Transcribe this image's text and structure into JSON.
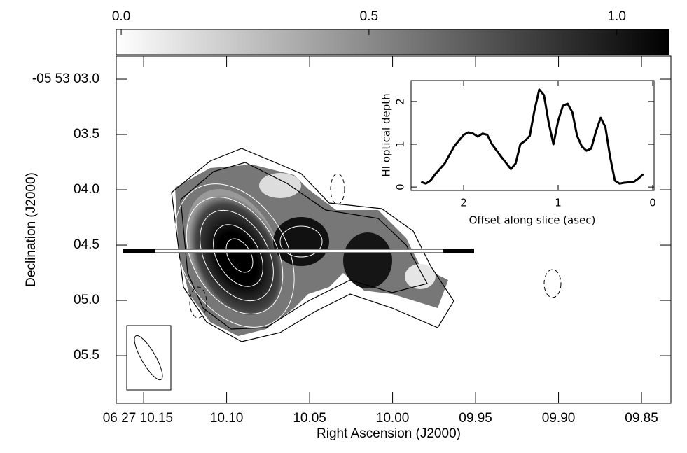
{
  "chart_data": [
    {
      "type": "image",
      "xlabel": "Right Ascension (J2000)",
      "ylabel": "Declination (J2000)",
      "xlim": [
        10.1665,
        9.8323
      ],
      "ylim": [
        5.93,
        2.791
      ],
      "xticks": [
        {
          "value": 10.15,
          "label": "06 27 10.15"
        },
        {
          "value": 10.1,
          "label": "10.10"
        },
        {
          "value": 10.05,
          "label": "10.05"
        },
        {
          "value": 10,
          "label": "10.00"
        },
        {
          "value": 9.95,
          "label": "09.95"
        },
        {
          "value": 9.9,
          "label": "09.90"
        },
        {
          "value": 9.85,
          "label": "09.85"
        }
      ],
      "yticks": [
        {
          "value": 3,
          "label": "-05 53 03.0"
        },
        {
          "value": 3.5,
          "label": "03.5"
        },
        {
          "value": 4,
          "label": "04.0"
        },
        {
          "value": 4.5,
          "label": "04.5"
        },
        {
          "value": 5,
          "label": "05.0"
        },
        {
          "value": 5.5,
          "label": "05.5"
        }
      ],
      "colorbar_lim": [
        -0.01,
        1.105
      ],
      "colorbar_ticks": [
        {
          "value": 0,
          "label": "0.0"
        },
        0.5,
        {
          "value": 1,
          "label": "1.0"
        }
      ]
    },
    {
      "type": "line",
      "xlabel": "Offset along slice (asec)",
      "ylabel": "HI optical depth",
      "xlim": [
        2.556,
        -0.015
      ],
      "ylim": [
        -0.08,
        2.49
      ],
      "xticks": [
        2,
        1,
        0
      ],
      "yticks": [
        0,
        1,
        2
      ],
      "x": [
        2.45,
        2.4,
        2.35,
        2.3,
        2.2,
        2.1,
        2.0,
        1.95,
        1.9,
        1.85,
        1.8,
        1.75,
        1.7,
        1.6,
        1.5,
        1.45,
        1.4,
        1.35,
        1.3,
        1.25,
        1.2,
        1.15,
        1.1,
        1.05,
        1.0,
        0.95,
        0.9,
        0.85,
        0.8,
        0.75,
        0.7,
        0.65,
        0.6,
        0.55,
        0.5,
        0.45,
        0.4,
        0.35,
        0.3,
        0.2,
        0.15,
        0.1
      ],
      "series": [
        {
          "color": "#000000",
          "values": [
            0.12,
            0.08,
            0.15,
            0.3,
            0.55,
            0.95,
            1.22,
            1.28,
            1.25,
            1.18,
            1.25,
            1.22,
            1.0,
            0.7,
            0.42,
            0.55,
            1.0,
            1.08,
            1.2,
            1.8,
            2.28,
            2.15,
            1.5,
            1.0,
            1.55,
            1.9,
            1.95,
            1.75,
            1.2,
            0.95,
            0.85,
            0.9,
            1.3,
            1.62,
            1.4,
            0.7,
            0.15,
            0.08,
            0.1,
            0.12,
            0.2,
            0.3
          ]
        }
      ]
    }
  ]
}
